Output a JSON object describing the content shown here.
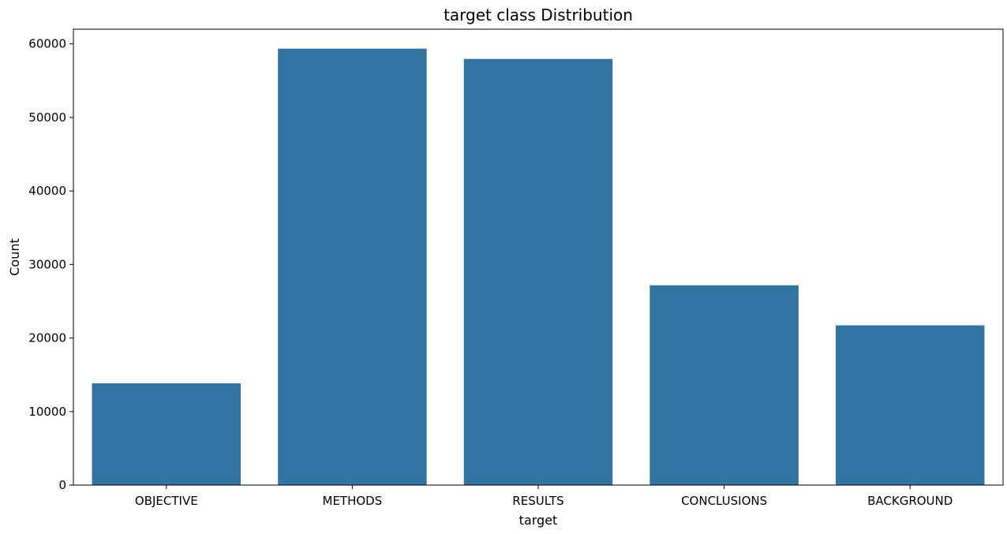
{
  "chart_data": {
    "type": "bar",
    "title": "target class Distribution",
    "xlabel": "target",
    "ylabel": "Count",
    "categories": [
      "OBJECTIVE",
      "METHODS",
      "RESULTS",
      "CONCLUSIONS",
      "BACKGROUND"
    ],
    "values": [
      13839,
      59353,
      57953,
      27168,
      21727
    ],
    "ylim": [
      0,
      62000
    ],
    "yticks": [
      0,
      10000,
      20000,
      30000,
      40000,
      50000,
      60000
    ],
    "bar_color": "#3274a1",
    "grid": false,
    "legend": "none"
  }
}
